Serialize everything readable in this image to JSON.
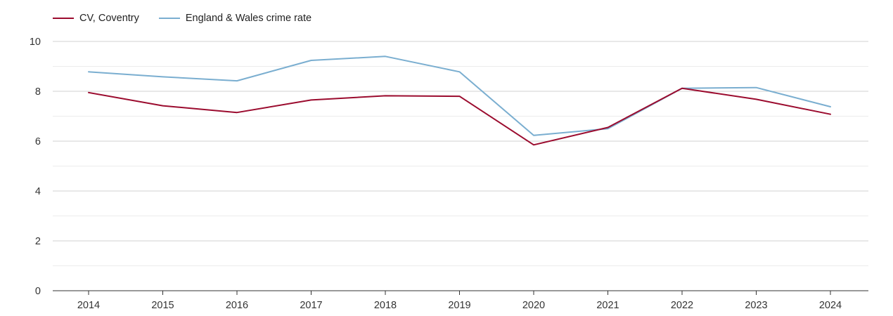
{
  "chart_data": {
    "type": "line",
    "categories": [
      "2014",
      "2015",
      "2016",
      "2017",
      "2018",
      "2019",
      "2020",
      "2021",
      "2022",
      "2023",
      "2024"
    ],
    "series": [
      {
        "name": "CV, Coventry",
        "color": "#9b0b2e",
        "values": [
          7.95,
          7.42,
          7.15,
          7.65,
          7.82,
          7.8,
          5.85,
          6.55,
          8.12,
          7.68,
          7.08
        ]
      },
      {
        "name": "England & Wales crime rate",
        "color": "#7aaed0",
        "values": [
          8.78,
          8.58,
          8.42,
          9.24,
          9.4,
          8.78,
          6.23,
          6.5,
          8.12,
          8.15,
          7.38
        ]
      }
    ],
    "ylim": [
      0,
      10
    ],
    "yticks": [
      "0",
      "2",
      "4",
      "6",
      "8",
      "10"
    ],
    "grid": true,
    "legend_position": "top-left",
    "title": "",
    "xlabel": "",
    "ylabel": ""
  }
}
